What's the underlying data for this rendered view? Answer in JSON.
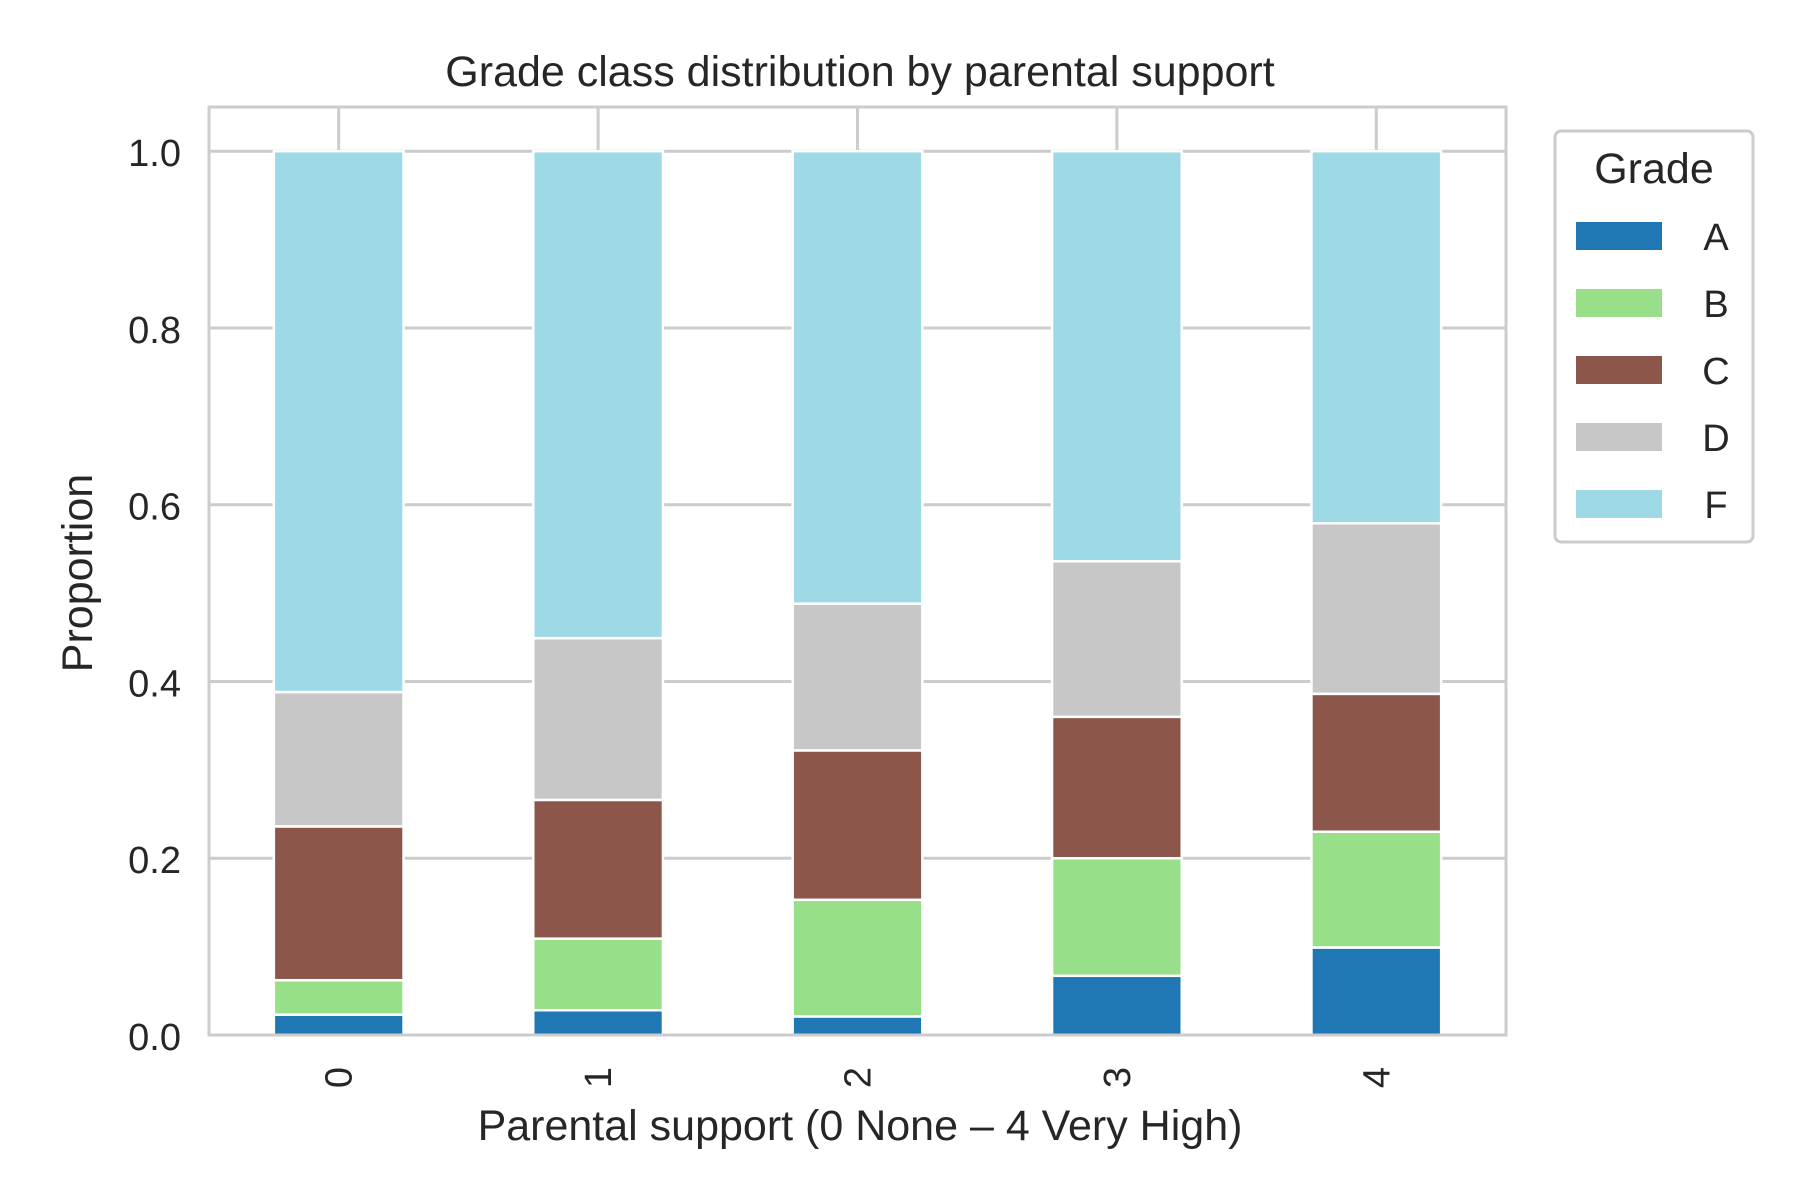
{
  "chart_data": {
    "type": "bar",
    "stacked": true,
    "title": "Grade class distribution by parental support",
    "xlabel": "Parental support (0 None – 4 Very High)",
    "ylabel": "Proportion",
    "categories": [
      "0",
      "1",
      "2",
      "3",
      "4"
    ],
    "ylim": [
      0,
      1.05
    ],
    "yticks": [
      0.0,
      0.2,
      0.4,
      0.6,
      0.8,
      1.0
    ],
    "ytick_labels": [
      "0.0",
      "0.2",
      "0.4",
      "0.6",
      "0.8",
      "1.0"
    ],
    "grid": true,
    "legend": {
      "title": "Grade",
      "position": "outside-upper-right"
    },
    "series": [
      {
        "name": "A",
        "color": "#1f77b4",
        "values": [
          0.023,
          0.028,
          0.021,
          0.067,
          0.099
        ]
      },
      {
        "name": "B",
        "color": "#98df8a",
        "values": [
          0.039,
          0.081,
          0.132,
          0.133,
          0.131
        ]
      },
      {
        "name": "C",
        "color": "#8c564b",
        "values": [
          0.174,
          0.157,
          0.169,
          0.16,
          0.156
        ]
      },
      {
        "name": "D",
        "color": "#c7c7c7",
        "values": [
          0.152,
          0.183,
          0.166,
          0.176,
          0.193
        ]
      },
      {
        "name": "F",
        "color": "#9edae5",
        "values": [
          0.612,
          0.551,
          0.512,
          0.464,
          0.421
        ]
      }
    ]
  }
}
